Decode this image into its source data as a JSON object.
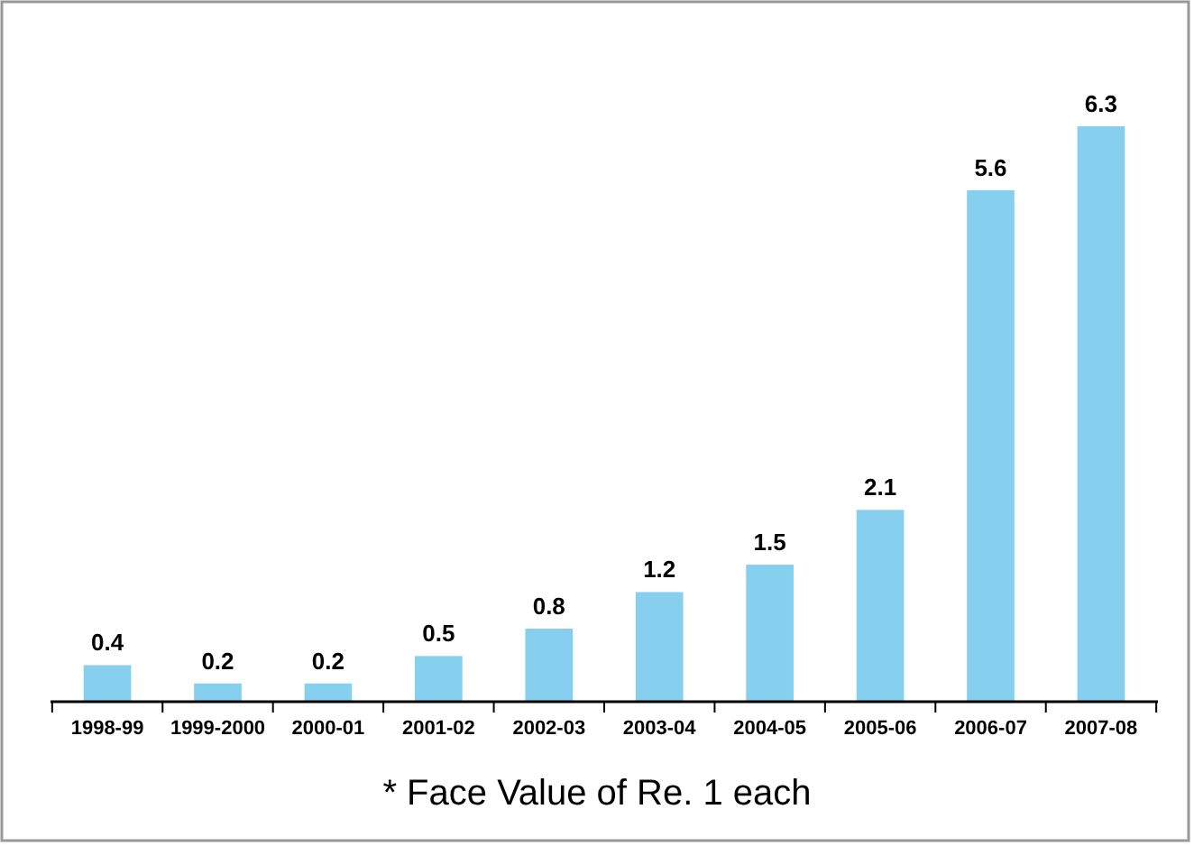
{
  "chart_data": {
    "type": "bar",
    "categories": [
      "1998-99",
      "1999-2000",
      "2000-01",
      "2001-02",
      "2002-03",
      "2003-04",
      "2004-05",
      "2005-06",
      "2006-07",
      "2007-08"
    ],
    "values": [
      0.4,
      0.2,
      0.2,
      0.5,
      0.8,
      1.2,
      1.5,
      2.1,
      5.6,
      6.3
    ],
    "color": "#87cfee",
    "data_labels": true,
    "annotations": [
      "* Face Value of Re. 1 each"
    ]
  }
}
